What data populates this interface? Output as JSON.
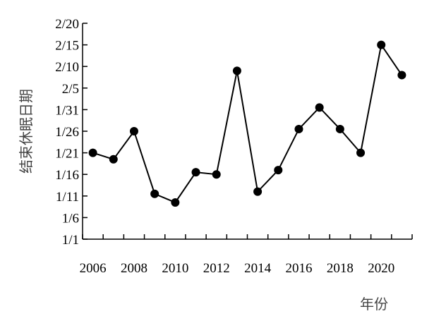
{
  "chart_data": {
    "type": "line",
    "xlabel": "年份",
    "ylabel": "结束休眠日期",
    "x": [
      2006,
      2007,
      2008,
      2009,
      2010,
      2011,
      2012,
      2013,
      2014,
      2015,
      2016,
      2017,
      2018,
      2019,
      2020,
      2021
    ],
    "values": [
      21.0,
      19.5,
      26.0,
      11.5,
      9.5,
      16.5,
      16.0,
      40.0,
      12.0,
      17.0,
      26.5,
      31.5,
      26.5,
      21.0,
      46.0,
      39.0
    ],
    "ytick_labels": [
      "1/1",
      "1/6",
      "1/11",
      "1/16",
      "1/21",
      "1/26",
      "1/31",
      "2/5",
      "2/10",
      "2/15",
      "2/20"
    ],
    "ytick_values": [
      1,
      6,
      11,
      16,
      21,
      26,
      31,
      36,
      41,
      46,
      51
    ],
    "ylim": [
      1,
      51
    ],
    "xtick_labels": [
      "2006",
      "2008",
      "2010",
      "2012",
      "2014",
      "2016",
      "2018",
      "2020"
    ],
    "xtick_values": [
      2006,
      2008,
      2010,
      2012,
      2014,
      2016,
      2018,
      2020
    ],
    "xlim": [
      2005.5,
      2021.5
    ],
    "grid": false,
    "legend": "none",
    "line_color": "#000000",
    "marker_color": "#000000"
  }
}
